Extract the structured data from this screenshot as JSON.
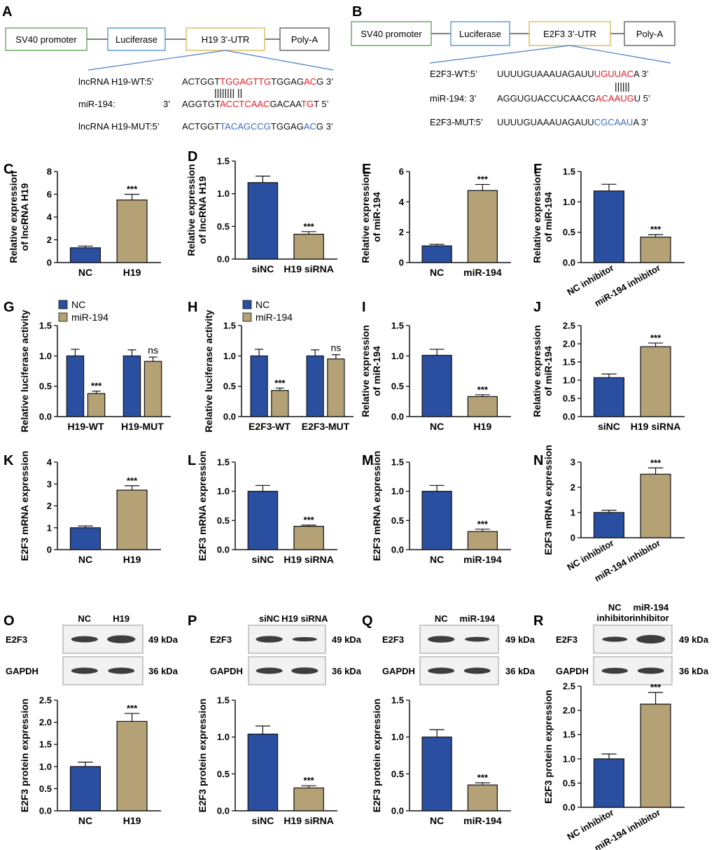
{
  "colors": {
    "blue": "#2a4fa0",
    "tan": "#b5a176",
    "red": "#e0202a",
    "mut_blue": "#3c6cc0",
    "box_green": "#5a9a50",
    "box_blue": "#4a8ed0",
    "box_gold": "#d6b64a",
    "box_gray": "#555555",
    "line_blue": "#4a7cc8"
  },
  "panels": {
    "A": "A",
    "B": "B",
    "C": "C",
    "D": "D",
    "E": "E",
    "F": "F",
    "G": "G",
    "H": "H",
    "I": "I",
    "J": "J",
    "K": "K",
    "L": "L",
    "M": "M",
    "N": "N",
    "O": "O",
    "P": "P",
    "Q": "Q",
    "R": "R"
  },
  "constructA": {
    "boxes": [
      "SV40 promoter",
      "Luciferase",
      "H19 3’-UTR",
      "Poly-A"
    ],
    "wt": {
      "label": "lncRNA H19-WT:5’",
      "parts": [
        {
          "t": "ACTGGT",
          "c": "n"
        },
        {
          "t": "TGGAGTTG",
          "c": "r"
        },
        {
          "t": "TGGAG",
          "c": "n"
        },
        {
          "t": "AC",
          "c": "r"
        },
        {
          "t": "G 3’",
          "c": "n"
        }
      ]
    },
    "pairs": "||||||||  ||",
    "mir": {
      "label": "miR-194:",
      "label2": "3’",
      "parts": [
        {
          "t": "AGGTGT",
          "c": "n"
        },
        {
          "t": "ACCTCAAC",
          "c": "r"
        },
        {
          "t": "GACAA",
          "c": "n"
        },
        {
          "t": "TG",
          "c": "r"
        },
        {
          "t": "T 5’",
          "c": "n"
        }
      ]
    },
    "mut": {
      "label": "lncRNA H19-MUT:5’",
      "parts": [
        {
          "t": "ACTGGT",
          "c": "n"
        },
        {
          "t": "TACAGCCG",
          "c": "b"
        },
        {
          "t": "TGGAG",
          "c": "n"
        },
        {
          "t": "AC",
          "c": "b"
        },
        {
          "t": "G 3’",
          "c": "n"
        }
      ]
    }
  },
  "constructB": {
    "boxes": [
      "SV40 promoter",
      "Luciferase",
      "E2F3 3’-UTR",
      "Poly-A"
    ],
    "wt": {
      "label": "E2F3-WT:5’",
      "parts": [
        {
          "t": "UUUUGUAAAUAGAUU",
          "c": "n"
        },
        {
          "t": "UGUUAC",
          "c": "r"
        },
        {
          "t": "A 3’",
          "c": "n"
        }
      ]
    },
    "pairs": "||||||",
    "mir": {
      "label": "miR-194: 3’",
      "parts": [
        {
          "t": "AGGUGUACCUCAACG",
          "c": "n"
        },
        {
          "t": "ACAAUG",
          "c": "r"
        },
        {
          "t": "U 5’",
          "c": "n"
        }
      ]
    },
    "mut": {
      "label": "E2F3-MUT:5’",
      "parts": [
        {
          "t": "UUUUGUAAAUAGAUU",
          "c": "n"
        },
        {
          "t": "CGCAAU",
          "c": "b"
        },
        {
          "t": "A 3’",
          "c": "n"
        }
      ]
    }
  },
  "blots": {
    "O": {
      "lanes": [
        "NC",
        "H19"
      ],
      "rows": [
        {
          "name": "E2F3",
          "kda": "49 kDa"
        },
        {
          "name": "GAPDH",
          "kda": "36 kDa"
        }
      ]
    },
    "P": {
      "lanes": [
        "siNC",
        "H19 siRNA"
      ],
      "rows": [
        {
          "name": "E2F3",
          "kda": "49 kDa"
        },
        {
          "name": "GAPDH",
          "kda": "36 kDa"
        }
      ]
    },
    "Q": {
      "lanes": [
        "NC",
        "miR-194"
      ],
      "rows": [
        {
          "name": "E2F3",
          "kda": "49 kDa"
        },
        {
          "name": "GAPDH",
          "kda": "36 kDa"
        }
      ]
    },
    "R": {
      "lanes": [
        "NC\ninhibitor",
        "miR-194\ninhibitor"
      ],
      "rows": [
        {
          "name": "E2F3",
          "kda": "49 kDa"
        },
        {
          "name": "GAPDH",
          "kda": "36 kDa"
        }
      ]
    }
  },
  "chart_data": [
    {
      "id": "C",
      "type": "bar",
      "ylabel": [
        "Relative expression",
        "of lncRNA H19"
      ],
      "categories": [
        "NC",
        "H19"
      ],
      "values": [
        1.3,
        5.5
      ],
      "errors": [
        0.15,
        0.5
      ],
      "sig": [
        null,
        "***"
      ],
      "ylim": [
        0,
        8
      ],
      "yticks": [
        0,
        2,
        4,
        6,
        8
      ]
    },
    {
      "id": "D",
      "type": "bar",
      "ylabel": [
        "Relative expression",
        "of lncRNA H19"
      ],
      "categories": [
        "siNC",
        "H19 siRNA"
      ],
      "values": [
        1.17,
        0.38
      ],
      "errors": [
        0.1,
        0.04
      ],
      "sig": [
        null,
        "***"
      ],
      "ylim": [
        0,
        1.5
      ],
      "yticks": [
        "0.0",
        "0.5",
        "1.0",
        "1.5"
      ]
    },
    {
      "id": "E",
      "type": "bar",
      "ylabel": [
        "Relative expression",
        "of miR-194"
      ],
      "categories": [
        "NC",
        "miR-194"
      ],
      "values": [
        1.1,
        4.75
      ],
      "errors": [
        0.1,
        0.4
      ],
      "sig": [
        null,
        "***"
      ],
      "ylim": [
        0,
        6
      ],
      "yticks": [
        0,
        2,
        4,
        6
      ]
    },
    {
      "id": "F",
      "type": "bar",
      "ylabel": [
        "Relative expression",
        "of miR-194"
      ],
      "categories": [
        "NC inhibitor",
        "miR-194 inhibitor"
      ],
      "values": [
        1.18,
        0.42
      ],
      "errors": [
        0.11,
        0.04
      ],
      "sig": [
        null,
        "***"
      ],
      "ylim": [
        0,
        1.5
      ],
      "yticks": [
        "0.0",
        "0.5",
        "1.0",
        "1.5"
      ],
      "rotate": true
    },
    {
      "id": "G",
      "type": "bar",
      "ylabel": [
        "Relative luciferase activity"
      ],
      "categories": [
        "H19-WT",
        "H19-MUT"
      ],
      "legend": [
        "NC",
        "miR-194"
      ],
      "series": [
        {
          "name": "NC",
          "values": [
            1.0,
            1.0
          ],
          "errors": [
            0.11,
            0.1
          ]
        },
        {
          "name": "miR-194",
          "values": [
            0.38,
            0.91
          ],
          "errors": [
            0.04,
            0.07
          ]
        }
      ],
      "sig": [
        [
          null,
          "***"
        ],
        [
          null,
          "ns"
        ]
      ],
      "ylim": [
        0,
        1.5
      ],
      "yticks": [
        "0.0",
        "0.5",
        "1.0",
        "1.5"
      ]
    },
    {
      "id": "H",
      "type": "bar",
      "ylabel": [
        "Relative luciferase activity"
      ],
      "categories": [
        "E2F3-WT",
        "E2F3-MUT"
      ],
      "legend": [
        "NC",
        "miR-194"
      ],
      "series": [
        {
          "name": "NC",
          "values": [
            1.0,
            1.0
          ],
          "errors": [
            0.11,
            0.1
          ]
        },
        {
          "name": "miR-194",
          "values": [
            0.43,
            0.95
          ],
          "errors": [
            0.04,
            0.07
          ]
        }
      ],
      "sig": [
        [
          null,
          "***"
        ],
        [
          null,
          "ns"
        ]
      ],
      "ylim": [
        0,
        1.5
      ],
      "yticks": [
        "0.0",
        "0.5",
        "1.0",
        "1.5"
      ]
    },
    {
      "id": "I",
      "type": "bar",
      "ylabel": [
        "Relative expression",
        "of miR-194"
      ],
      "categories": [
        "NC",
        "H19"
      ],
      "values": [
        1.01,
        0.33
      ],
      "errors": [
        0.1,
        0.03
      ],
      "sig": [
        null,
        "***"
      ],
      "ylim": [
        0,
        1.5
      ],
      "yticks": [
        "0.0",
        "0.5",
        "1.0",
        "1.5"
      ]
    },
    {
      "id": "J",
      "type": "bar",
      "ylabel": [
        "Relative expression",
        "of miR-194"
      ],
      "categories": [
        "siNC",
        "H19 siRNA"
      ],
      "values": [
        1.07,
        1.92
      ],
      "errors": [
        0.1,
        0.1
      ],
      "sig": [
        null,
        "***"
      ],
      "ylim": [
        0,
        2.5
      ],
      "yticks": [
        "0.0",
        "0.5",
        "1.0",
        "1.5",
        "2.0",
        "2.5"
      ]
    },
    {
      "id": "K",
      "type": "bar",
      "ylabel": [
        "E2F3 mRNA expression"
      ],
      "categories": [
        "NC",
        "H19"
      ],
      "values": [
        1.0,
        2.72
      ],
      "errors": [
        0.08,
        0.2
      ],
      "sig": [
        null,
        "***"
      ],
      "ylim": [
        0,
        4
      ],
      "yticks": [
        0,
        1,
        2,
        3,
        4
      ]
    },
    {
      "id": "L",
      "type": "bar",
      "ylabel": [
        "E2F3 mRNA expression"
      ],
      "categories": [
        "siNC",
        "H19 siRNA"
      ],
      "values": [
        1.0,
        0.4
      ],
      "errors": [
        0.1,
        0.02
      ],
      "sig": [
        null,
        "***"
      ],
      "ylim": [
        0,
        1.5
      ],
      "yticks": [
        "0.0",
        "0.5",
        "1.0",
        "1.5"
      ]
    },
    {
      "id": "M",
      "type": "bar",
      "ylabel": [
        "E2F3 mRNA expression"
      ],
      "categories": [
        "NC",
        "miR-194"
      ],
      "values": [
        1.0,
        0.31
      ],
      "errors": [
        0.1,
        0.04
      ],
      "sig": [
        null,
        "***"
      ],
      "ylim": [
        0,
        1.5
      ],
      "yticks": [
        "0.0",
        "0.5",
        "1.0",
        "1.5"
      ]
    },
    {
      "id": "N",
      "type": "bar",
      "ylabel": [
        "E2F3 mRNA expression"
      ],
      "categories": [
        "NC inhibitor",
        "miR-194 inhibitor"
      ],
      "values": [
        1.0,
        2.52
      ],
      "errors": [
        0.09,
        0.25
      ],
      "sig": [
        null,
        "***"
      ],
      "ylim": [
        0,
        3
      ],
      "yticks": [
        0,
        1,
        2,
        3
      ],
      "rotate": true
    },
    {
      "id": "O",
      "type": "bar",
      "ylabel": [
        "E2F3 protein expression"
      ],
      "categories": [
        "NC",
        "H19"
      ],
      "values": [
        1.0,
        2.02
      ],
      "errors": [
        0.1,
        0.18
      ],
      "sig": [
        null,
        "***"
      ],
      "ylim": [
        0,
        2.5
      ],
      "yticks": [
        "0.0",
        "0.5",
        "1.0",
        "1.5",
        "2.0",
        "2.5"
      ]
    },
    {
      "id": "P",
      "type": "bar",
      "ylabel": [
        "E2F3 protein expression"
      ],
      "categories": [
        "siNC",
        "H19 siRNA"
      ],
      "values": [
        1.04,
        0.31
      ],
      "errors": [
        0.11,
        0.03
      ],
      "sig": [
        null,
        "***"
      ],
      "ylim": [
        0,
        1.5
      ],
      "yticks": [
        "0.0",
        "0.5",
        "1.0",
        "1.5"
      ]
    },
    {
      "id": "Q",
      "type": "bar",
      "ylabel": [
        "E2F3 protein expression"
      ],
      "categories": [
        "NC",
        "miR-194"
      ],
      "values": [
        1.0,
        0.35
      ],
      "errors": [
        0.1,
        0.03
      ],
      "sig": [
        null,
        "***"
      ],
      "ylim": [
        0,
        1.5
      ],
      "yticks": [
        "0.0",
        "0.5",
        "1.0",
        "1.5"
      ]
    },
    {
      "id": "R",
      "type": "bar",
      "ylabel": [
        "E2F3 protein expression"
      ],
      "categories": [
        "NC inhibitor",
        "miR-194 inhibitor"
      ],
      "values": [
        1.0,
        2.13
      ],
      "errors": [
        0.1,
        0.24
      ],
      "sig": [
        null,
        "***"
      ],
      "ylim": [
        0,
        2.5
      ],
      "yticks": [
        "0.0",
        "0.5",
        "1.0",
        "1.5",
        "2.0",
        "2.5"
      ],
      "rotate": true
    }
  ]
}
